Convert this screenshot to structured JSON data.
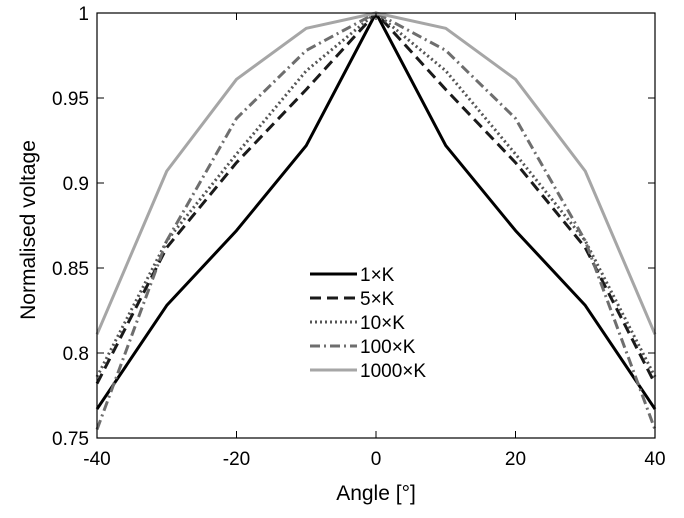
{
  "chart_data": {
    "type": "line",
    "title": "",
    "xlabel": "Angle [°]",
    "ylabel": "Normalised voltage",
    "xlim": [
      -40,
      40
    ],
    "ylim": [
      0.75,
      1
    ],
    "xticks": [
      -40,
      -20,
      0,
      20,
      40
    ],
    "xtick_labels": [
      "-40",
      "-20",
      "0",
      "20",
      "40"
    ],
    "yticks": [
      0.75,
      0.8,
      0.85,
      0.9,
      0.95,
      1
    ],
    "ytick_labels": [
      "0.75",
      "0.8",
      "0.85",
      "0.9",
      "0.95",
      "1"
    ],
    "grid": false,
    "legend_position": "center-bottom",
    "x": [
      -40,
      -30,
      -20,
      -10,
      0,
      10,
      20,
      30,
      40
    ],
    "series": [
      {
        "name": "1×K",
        "color": "#000000",
        "dash": "solid",
        "values": [
          0.767,
          0.828,
          0.872,
          0.922,
          1,
          0.922,
          0.872,
          0.828,
          0.767
        ]
      },
      {
        "name": "5×K",
        "color": "#1a1a1a",
        "dash": "dashed",
        "values": [
          0.782,
          0.862,
          0.912,
          0.955,
          1,
          0.955,
          0.912,
          0.862,
          0.782
        ]
      },
      {
        "name": "10×K",
        "color": "#555555",
        "dash": "dotted",
        "values": [
          0.786,
          0.866,
          0.917,
          0.966,
          1,
          0.966,
          0.917,
          0.866,
          0.786
        ]
      },
      {
        "name": "100×K",
        "color": "#6e6e6e",
        "dash": "dashdot",
        "values": [
          0.755,
          0.866,
          0.938,
          0.978,
          1,
          0.978,
          0.938,
          0.866,
          0.755
        ]
      },
      {
        "name": "1000×K",
        "color": "#a6a6a6",
        "dash": "solid",
        "values": [
          0.811,
          0.907,
          0.961,
          0.991,
          1,
          0.991,
          0.961,
          0.907,
          0.811
        ]
      }
    ]
  }
}
